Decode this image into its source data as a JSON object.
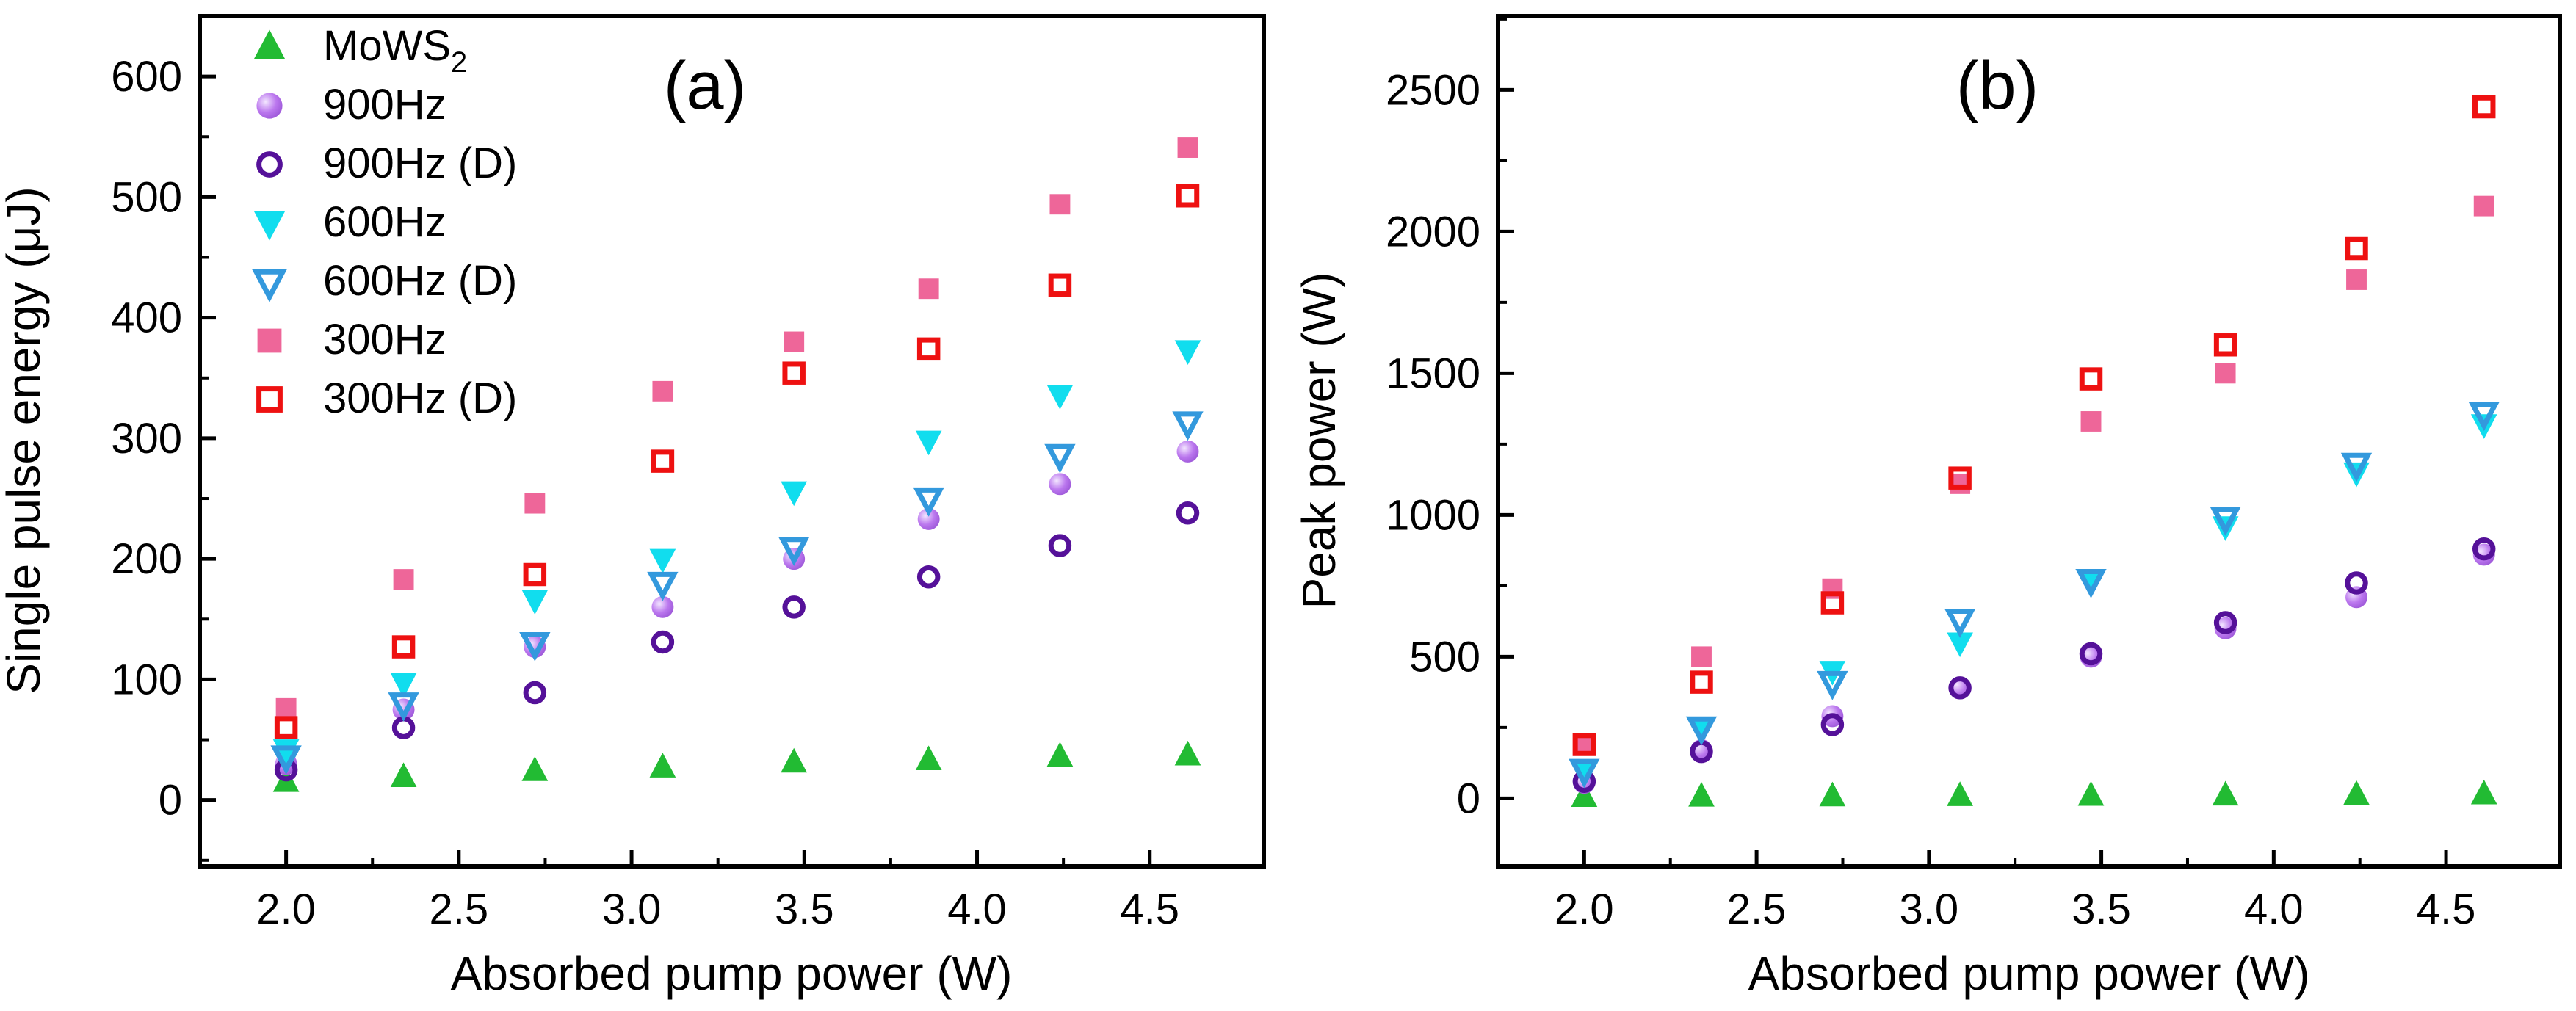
{
  "chart_data": [
    {
      "type": "scatter",
      "panel_label": "(a)",
      "xlabel": "Absorbed pump power (W)",
      "ylabel": "Single pulse energy (μJ)",
      "xlim": [
        1.75,
        4.83
      ],
      "ylim": [
        -55,
        650
      ],
      "xticks": [
        2.0,
        2.5,
        3.0,
        3.5,
        4.0,
        4.5
      ],
      "xtick_labels": [
        "2.0",
        "2.5",
        "3.0",
        "3.5",
        "4.0",
        "4.5"
      ],
      "yticks": [
        0,
        100,
        200,
        300,
        400,
        500,
        600
      ],
      "ytick_labels": [
        "0",
        "100",
        "200",
        "300",
        "400",
        "500",
        "600"
      ],
      "x": [
        2.0,
        2.34,
        2.72,
        3.09,
        3.47,
        3.86,
        4.24,
        4.61
      ],
      "legend_position": "top-left",
      "series": [
        {
          "name": "MoWS",
          "name_sub": "2",
          "marker": "triangle-up",
          "filled": true,
          "color": "#22bb33",
          "values": [
            15,
            19,
            24,
            27,
            31,
            33,
            36,
            37
          ]
        },
        {
          "name": "900Hz",
          "marker": "sphere",
          "filled": true,
          "color": "#bb77ee",
          "values": [
            30,
            75,
            127,
            160,
            200,
            233,
            262,
            289
          ]
        },
        {
          "name": "900Hz (D)",
          "marker": "circle",
          "filled": false,
          "color": "#551199",
          "values": [
            25,
            60,
            89,
            131,
            160,
            185,
            211,
            238
          ]
        },
        {
          "name": "600Hz",
          "marker": "triangle-down",
          "filled": true,
          "color": "#11ddee",
          "values": [
            42,
            97,
            166,
            200,
            256,
            298,
            336,
            373
          ]
        },
        {
          "name": "600Hz (D)",
          "marker": "triangle-down",
          "filled": false,
          "color": "#3399dd",
          "values": [
            36,
            80,
            130,
            180,
            209,
            250,
            286,
            313
          ]
        },
        {
          "name": "300Hz",
          "marker": "square",
          "filled": true,
          "color": "#ee6699",
          "values": [
            76,
            183,
            246,
            339,
            380,
            424,
            494,
            541
          ]
        },
        {
          "name": "300Hz (D)",
          "marker": "square",
          "filled": false,
          "color": "#ee1111",
          "values": [
            60,
            127,
            187,
            281,
            354,
            374,
            427,
            501
          ]
        }
      ]
    },
    {
      "type": "scatter",
      "panel_label": "(b)",
      "xlabel": "Absorbed pump power (W)",
      "ylabel": "Peak power (W)",
      "xlim": [
        1.75,
        4.83
      ],
      "ylim": [
        -240,
        2760
      ],
      "xticks": [
        2.0,
        2.5,
        3.0,
        3.5,
        4.0,
        4.5
      ],
      "xtick_labels": [
        "2.0",
        "2.5",
        "3.0",
        "3.5",
        "4.0",
        "4.5"
      ],
      "yticks": [
        0,
        500,
        1000,
        1500,
        2000,
        2500
      ],
      "ytick_labels": [
        "0",
        "500",
        "1000",
        "1500",
        "2000",
        "2500"
      ],
      "x": [
        2.0,
        2.34,
        2.72,
        3.09,
        3.47,
        3.86,
        4.24,
        4.61
      ],
      "series": [
        {
          "name": "MoWS2",
          "marker": "triangle-up",
          "filled": true,
          "color": "#22bb33",
          "values": [
            5,
            6,
            7,
            8,
            9,
            10,
            12,
            14
          ]
        },
        {
          "name": "900Hz",
          "marker": "sphere",
          "filled": true,
          "color": "#bb77ee",
          "values": [
            55,
            170,
            290,
            390,
            500,
            600,
            710,
            860
          ]
        },
        {
          "name": "900Hz (D)",
          "marker": "circle",
          "filled": false,
          "color": "#551199",
          "values": [
            60,
            165,
            260,
            390,
            510,
            620,
            760,
            880
          ]
        },
        {
          "name": "600Hz",
          "marker": "triangle-down",
          "filled": true,
          "color": "#11ddee",
          "values": [
            90,
            240,
            450,
            550,
            760,
            960,
            1150,
            1320
          ]
        },
        {
          "name": "600Hz (D)",
          "marker": "triangle-down",
          "filled": false,
          "color": "#3399dd",
          "values": [
            100,
            250,
            410,
            630,
            770,
            990,
            1180,
            1360
          ]
        },
        {
          "name": "300Hz",
          "marker": "square",
          "filled": true,
          "color": "#ee6699",
          "values": [
            190,
            500,
            740,
            1110,
            1330,
            1500,
            1830,
            2090
          ]
        },
        {
          "name": "300Hz (D)",
          "marker": "square",
          "filled": false,
          "color": "#ee1111",
          "values": [
            190,
            410,
            690,
            1130,
            1480,
            1600,
            1940,
            2440
          ]
        }
      ]
    }
  ]
}
